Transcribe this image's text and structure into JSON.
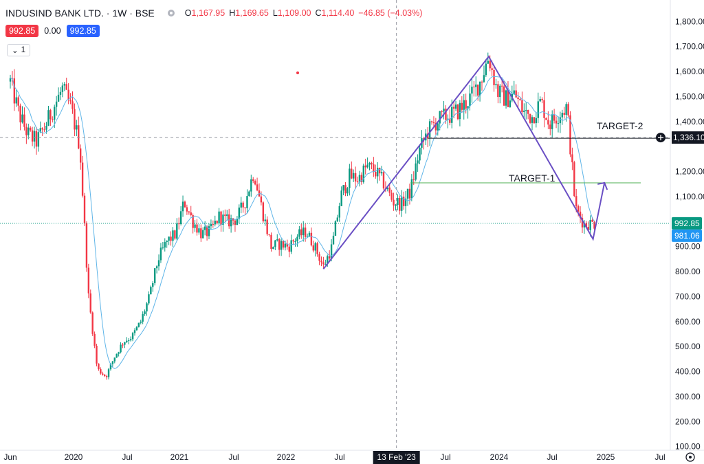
{
  "header": {
    "symbol": "INDUSIND BANK LTD. · 1W · BSE",
    "ohlc": {
      "o_label": "O",
      "o": "1,167.95",
      "h_label": "H",
      "h": "1,169.65",
      "l_label": "L",
      "l": "1,109.00",
      "c_label": "C",
      "c": "1,114.40",
      "change": "−46.85 (−4.03%)"
    }
  },
  "order_badges": {
    "sell": "992.85",
    "spread": "0.00",
    "buy": "992.85"
  },
  "indicator_toggle": {
    "label": "1"
  },
  "colors": {
    "up": "#089981",
    "down": "#f23645",
    "ma": "#5fb5e8",
    "pattern": "#6a4fc4",
    "target2": "#131722",
    "target1": "#4caf50",
    "last_price": "#089981",
    "ma_label": "#2196f3"
  },
  "price_axis": {
    "labels": [
      "1,800.00",
      "1,700.00",
      "1,600.00",
      "1,500.00",
      "1,400.00",
      "1,200.00",
      "1,100.00",
      "900.00",
      "800.00",
      "700.00",
      "600.00",
      "500.00",
      "400.00",
      "300.00",
      "200.00",
      "100.00"
    ],
    "crosshair_label": "1,336.10",
    "last_price_label": "992.85",
    "ma_value_label": "981.06"
  },
  "time_axis": {
    "labels": [
      "Jun",
      "2020",
      "Jul",
      "2021",
      "Jul",
      "2022",
      "Jul",
      "Jul",
      "2024",
      "Jul",
      "2025",
      "Jul"
    ],
    "crosshair_label": "13 Feb '23"
  },
  "annotations": {
    "target2": "TARGET-2",
    "target1": "TARGET-1"
  },
  "chart_data": {
    "type": "candlestick",
    "title": "INDUSIND BANK LTD. · 1W · BSE",
    "x_range": [
      "Jun 2019",
      "Aug 2025"
    ],
    "y_range": [
      100,
      1800
    ],
    "anchors": [
      [
        "2019-06",
        1560
      ],
      [
        "2019-07",
        1430
      ],
      [
        "2019-08",
        1350
      ],
      [
        "2019-09",
        1320
      ],
      [
        "2019-10",
        1380
      ],
      [
        "2019-11",
        1460
      ],
      [
        "2019-12",
        1530
      ],
      [
        "2020-01",
        1450
      ],
      [
        "2020-02",
        1300
      ],
      [
        "2020-03",
        700
      ],
      [
        "2020-04",
        410
      ],
      [
        "2020-05",
        380
      ],
      [
        "2020-06",
        460
      ],
      [
        "2020-07",
        520
      ],
      [
        "2020-08",
        540
      ],
      [
        "2020-09",
        600
      ],
      [
        "2020-10",
        700
      ],
      [
        "2020-11",
        850
      ],
      [
        "2020-12",
        920
      ],
      [
        "2021-01",
        950
      ],
      [
        "2021-02",
        1080
      ],
      [
        "2021-03",
        1000
      ],
      [
        "2021-04",
        950
      ],
      [
        "2021-05",
        960
      ],
      [
        "2021-06",
        1020
      ],
      [
        "2021-07",
        1000
      ],
      [
        "2021-08",
        1010
      ],
      [
        "2021-09",
        1080
      ],
      [
        "2021-10",
        1200
      ],
      [
        "2021-11",
        1040
      ],
      [
        "2021-12",
        900
      ],
      [
        "2022-01",
        910
      ],
      [
        "2022-02",
        900
      ],
      [
        "2022-03",
        940
      ],
      [
        "2022-04",
        960
      ],
      [
        "2022-05",
        900
      ],
      [
        "2022-06",
        820
      ],
      [
        "2022-07",
        900
      ],
      [
        "2022-08",
        1100
      ],
      [
        "2022-09",
        1180
      ],
      [
        "2022-10",
        1170
      ],
      [
        "2022-11",
        1220
      ],
      [
        "2022-12",
        1200
      ],
      [
        "2023-01",
        1150
      ],
      [
        "2023-02",
        1080
      ],
      [
        "2023-03",
        1070
      ],
      [
        "2023-04",
        1120
      ],
      [
        "2023-05",
        1280
      ],
      [
        "2023-06",
        1360
      ],
      [
        "2023-07",
        1400
      ],
      [
        "2023-08",
        1420
      ],
      [
        "2023-09",
        1430
      ],
      [
        "2023-10",
        1460
      ],
      [
        "2023-11",
        1500
      ],
      [
        "2023-12",
        1560
      ],
      [
        "2024-01",
        1660
      ],
      [
        "2024-02",
        1520
      ],
      [
        "2024-03",
        1490
      ],
      [
        "2024-04",
        1510
      ],
      [
        "2024-05",
        1440
      ],
      [
        "2024-06",
        1420
      ],
      [
        "2024-07",
        1480
      ],
      [
        "2024-08",
        1390
      ],
      [
        "2024-09",
        1430
      ],
      [
        "2024-10",
        1460
      ],
      [
        "2024-11",
        1050
      ],
      [
        "2024-12",
        990
      ],
      [
        "2025-01",
        993
      ]
    ],
    "pattern_line": [
      [
        "2022-06",
        810
      ],
      [
        "2024-01",
        1660
      ],
      [
        "2025-01",
        930
      ],
      [
        "2025-02",
        1155
      ]
    ],
    "target_lines": [
      {
        "label": "TARGET-2",
        "value": 1336.1
      },
      {
        "label": "TARGET-1",
        "value": 1155
      }
    ],
    "last_price": 992.85,
    "ma_value": 981.06,
    "crosshair": {
      "date": "13 Feb '23",
      "price": 1336.1
    },
    "grid": false
  }
}
